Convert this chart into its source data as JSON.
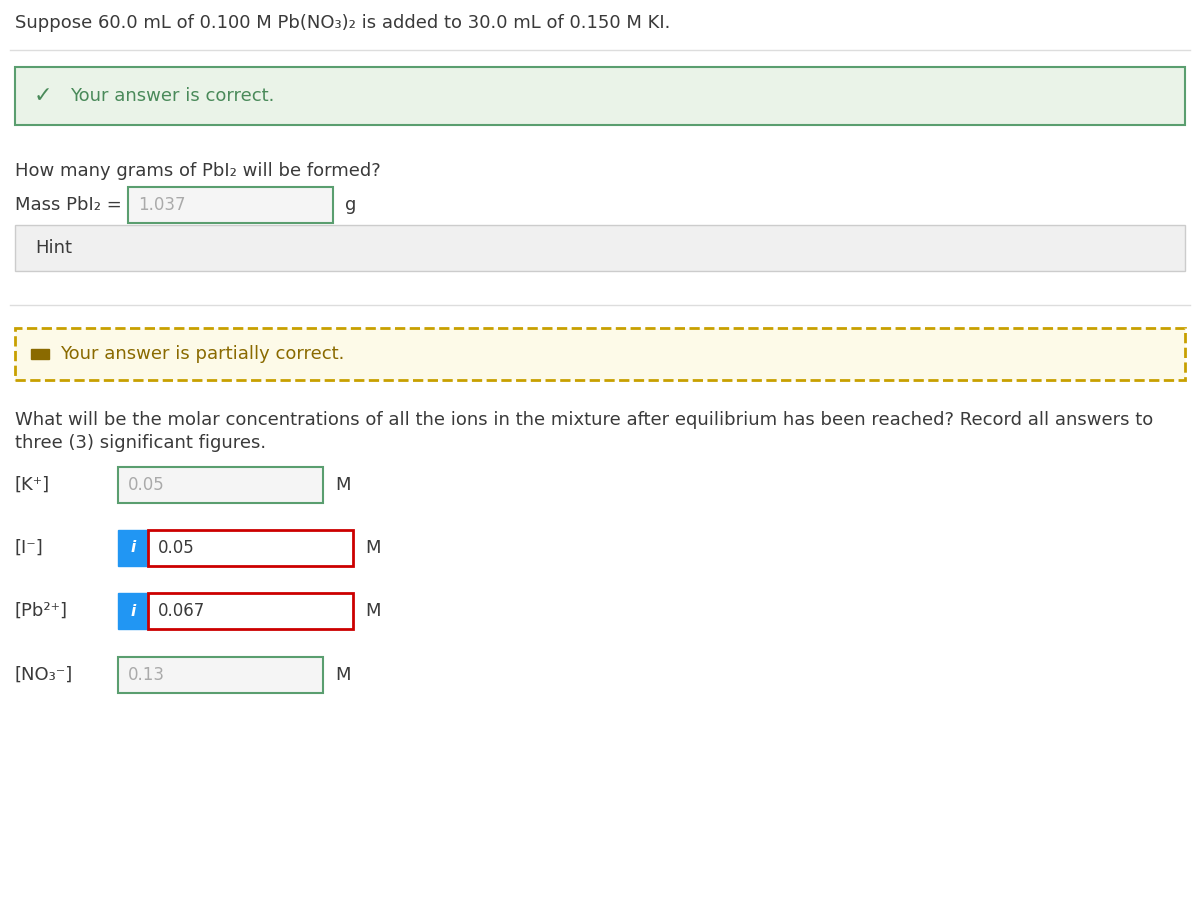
{
  "title_text": "Suppose 60.0 mL of 0.100 M Pb(NO₃)₂ is added to 30.0 mL of 0.150 M KI.",
  "correct_banner_text": "Your answer is correct.",
  "correct_bg": "#eaf3e8",
  "correct_border": "#5a9e6f",
  "correct_text_color": "#4a8a5a",
  "question1_text": "How many grams of PbI₂ will be formed?",
  "mass_label": "Mass PbI₂ =",
  "mass_value": "1.037",
  "mass_unit": "g",
  "hint_text": "Hint",
  "hint_bg": "#f0f0f0",
  "hint_border": "#cccccc",
  "partial_banner_text": "Your answer is partially correct.",
  "partial_bg": "#fdfae8",
  "partial_border": "#c8a000",
  "partial_text_color": "#8a6a00",
  "question2_line1": "What will be the molar concentrations of all the ions in the mixture after equilibrium has been reached? Record all answers to",
  "question2_line2": "three (3) significant figures.",
  "ions": [
    "[K⁺]",
    "[I⁻]",
    "[Pb²⁺]",
    "[NO₃⁻]"
  ],
  "values": [
    "0.05",
    "0.05",
    "0.067",
    "0.13"
  ],
  "units": [
    "M",
    "M",
    "M",
    "M"
  ],
  "has_info_button": [
    false,
    true,
    true,
    false
  ],
  "input_bg_normal": "#f5f5f5",
  "input_border_correct": "#5a9e6f",
  "input_border_red": "#cc0000",
  "info_btn_color": "#2196F3",
  "text_color_main": "#3a3a3a",
  "bg_color": "#ffffff",
  "separator_color": "#dddddd",
  "font_size_title": 13,
  "font_size_body": 12
}
